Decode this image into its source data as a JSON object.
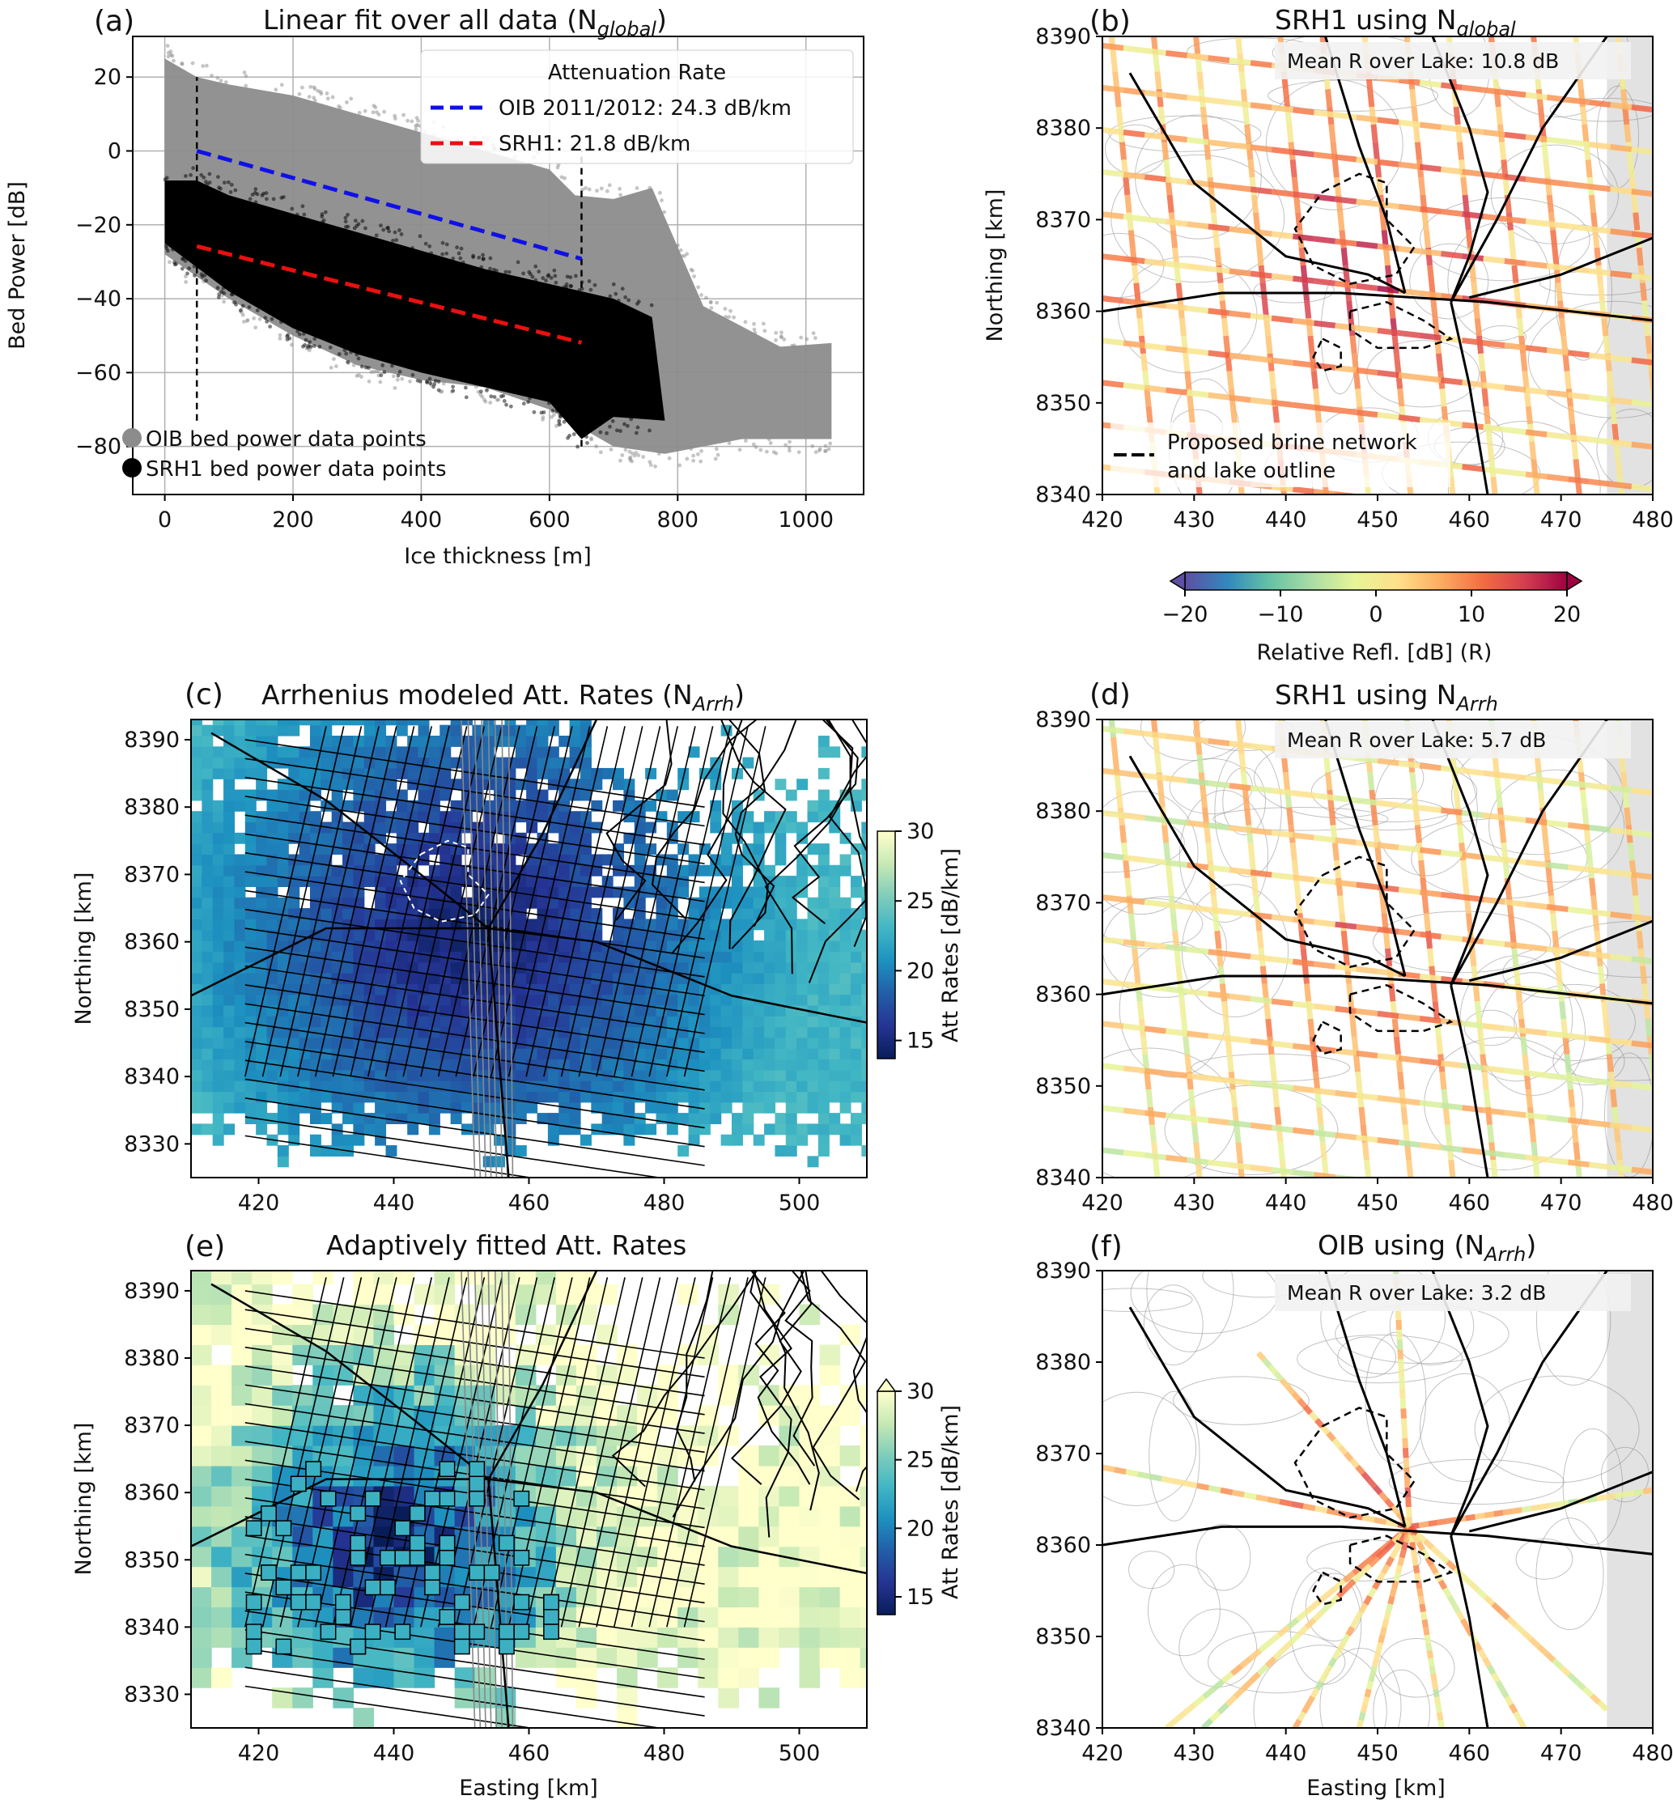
{
  "colors": {
    "oib": "#8c8c8c",
    "srh1": "#000000",
    "oib_fit": "#1010e8",
    "srh1_fit": "#e81010",
    "att_cmap": [
      "#081d58",
      "#253494",
      "#225ea8",
      "#1d91c0",
      "#41b6c4",
      "#7fcdbb",
      "#c7e9b4",
      "#ffffcc"
    ],
    "refl_cmap": [
      "#5e4fa2",
      "#3288bd",
      "#66c2a5",
      "#abdda4",
      "#e6f598",
      "#fee08b",
      "#fdae61",
      "#f46d43",
      "#d53e4f",
      "#9e0142"
    ]
  },
  "panels": {
    "a": {
      "label": "(a)",
      "title": "Linear fit over all data (N",
      "title_sub": "global",
      "title_end": ")",
      "legend_title": "Attenuation Rate",
      "legend_oib": "OIB 2011/2012: 24.3 dB/km",
      "legend_srh1": "SRH1: 21.8 dB/km",
      "marker_oib": "OIB bed power data points",
      "marker_srh1": "SRH1 bed power data points"
    },
    "b": {
      "label": "(b)",
      "title": "SRH1 using N",
      "title_sub": "global",
      "note": "Mean R over Lake: 10.8 dB",
      "legend_line1": "Proposed brine network",
      "legend_line2": "and lake outline"
    },
    "c": {
      "label": "(c)",
      "title": "Arrhenius modeled Att. Rates (N",
      "title_sub": "Arrh",
      "title_end": ")"
    },
    "d": {
      "label": "(d)",
      "title": "SRH1 using N",
      "title_sub": "Arrh",
      "note": "Mean R over Lake: 5.7 dB"
    },
    "e": {
      "label": "(e)",
      "title": "Adaptively fitted Att. Rates"
    },
    "f": {
      "label": "(f)",
      "title": "OIB using (N",
      "title_sub": "Arrh",
      "title_end": ")",
      "note": "Mean R over Lake: 3.2 dB"
    }
  },
  "colorbars": {
    "refl": {
      "label": "Relative Refl. [dB] (R)",
      "ticks": [
        "−20",
        "−10",
        "0",
        "10",
        "20"
      ]
    },
    "att": {
      "label": "Att Rates [dB/km]",
      "ticks": [
        "15",
        "20",
        "25",
        "30"
      ]
    }
  },
  "chart_data": [
    {
      "type": "scatter",
      "panel": "a",
      "xlabel": "Ice thickness [m]",
      "ylabel": "Bed Power [dB]",
      "xlim": [
        -50,
        1090
      ],
      "ylim": [
        -93,
        31
      ],
      "xticks": [
        0,
        200,
        400,
        600,
        800,
        1000
      ],
      "yticks": [
        20,
        0,
        -20,
        -40,
        -60,
        -80
      ],
      "grid": true,
      "legend_position": "top-right",
      "series": [
        {
          "name": "OIB bed power data points",
          "kind": "scatter",
          "color": "gray",
          "envelope_upper": [
            [
              0,
              25
            ],
            [
              50,
              20
            ],
            [
              100,
              18
            ],
            [
              200,
              15
            ],
            [
              300,
              10
            ],
            [
              400,
              5
            ],
            [
              500,
              0
            ],
            [
              600,
              -5
            ],
            [
              640,
              -12
            ],
            [
              700,
              -13
            ],
            [
              760,
              -10
            ],
            [
              840,
              -42
            ],
            [
              960,
              -53
            ],
            [
              1040,
              -52
            ]
          ],
          "envelope_lower": [
            [
              0,
              -28
            ],
            [
              100,
              -40
            ],
            [
              200,
              -50
            ],
            [
              300,
              -58
            ],
            [
              400,
              -62
            ],
            [
              500,
              -64
            ],
            [
              600,
              -70
            ],
            [
              700,
              -80
            ],
            [
              780,
              -82
            ],
            [
              900,
              -78
            ],
            [
              1040,
              -78
            ]
          ]
        },
        {
          "name": "SRH1 bed power data points",
          "kind": "scatter",
          "color": "black",
          "envelope_upper": [
            [
              0,
              -8
            ],
            [
              50,
              -8
            ],
            [
              100,
              -12
            ],
            [
              200,
              -17
            ],
            [
              300,
              -22
            ],
            [
              400,
              -27
            ],
            [
              500,
              -32
            ],
            [
              600,
              -36
            ],
            [
              700,
              -40
            ],
            [
              760,
              -45
            ]
          ],
          "envelope_lower": [
            [
              0,
              -25
            ],
            [
              100,
              -38
            ],
            [
              200,
              -48
            ],
            [
              300,
              -55
            ],
            [
              400,
              -60
            ],
            [
              500,
              -64
            ],
            [
              600,
              -68
            ],
            [
              650,
              -78
            ],
            [
              700,
              -72
            ],
            [
              780,
              -73
            ]
          ]
        },
        {
          "name": "OIB 2011/2012: 24.3 dB/km",
          "kind": "fit",
          "x": [
            50,
            650
          ],
          "y": [
            0,
            -29.2
          ]
        },
        {
          "name": "SRH1: 21.8 dB/km",
          "kind": "fit",
          "x": [
            50,
            650
          ],
          "y": [
            -25.8,
            -51.9
          ]
        }
      ],
      "annotations": [
        {
          "kind": "vline",
          "x": 50,
          "y": [
            -73,
            20
          ]
        },
        {
          "kind": "vline",
          "x": 650,
          "y": [
            -80,
            0
          ]
        }
      ]
    },
    {
      "type": "heatmap",
      "panel": "b",
      "xlim": [
        420,
        480
      ],
      "ylim": [
        8340,
        8390
      ],
      "xticks": [
        420,
        430,
        440,
        450,
        460,
        470,
        480
      ],
      "yticks": [
        8390,
        8380,
        8370,
        8360,
        8350,
        8340
      ],
      "ylabel": "Northing [km]",
      "colorbar": "refl"
    },
    {
      "type": "heatmap",
      "panel": "c",
      "xlim": [
        410,
        510
      ],
      "ylim": [
        8325,
        8393
      ],
      "xticks": [
        420,
        440,
        460,
        480,
        500
      ],
      "yticks": [
        8390,
        8380,
        8370,
        8360,
        8350,
        8340,
        8330
      ],
      "ylabel": "Northing [km]",
      "colorbar": "att",
      "clim": [
        13.7,
        30
      ]
    },
    {
      "type": "heatmap",
      "panel": "d",
      "xlim": [
        420,
        480
      ],
      "ylim": [
        8340,
        8390
      ],
      "xticks": [
        420,
        430,
        440,
        450,
        460,
        470,
        480
      ],
      "yticks": [
        8390,
        8380,
        8370,
        8360,
        8350,
        8340
      ],
      "colorbar": "refl"
    },
    {
      "type": "heatmap",
      "panel": "e",
      "xlim": [
        410,
        510
      ],
      "ylim": [
        8325,
        8393
      ],
      "xticks": [
        420,
        440,
        460,
        480,
        500
      ],
      "yticks": [
        8390,
        8380,
        8370,
        8360,
        8350,
        8340,
        8330
      ],
      "xlabel": "Easting [km]",
      "ylabel": "Northing [km]",
      "colorbar": "att",
      "clim": [
        13.7,
        30
      ]
    },
    {
      "type": "heatmap",
      "panel": "f",
      "xlim": [
        420,
        480
      ],
      "ylim": [
        8340,
        8390
      ],
      "xticks": [
        420,
        430,
        440,
        450,
        460,
        470,
        480
      ],
      "yticks": [
        8390,
        8380,
        8370,
        8360,
        8350,
        8340
      ],
      "xlabel": "Easting [km]",
      "colorbar": "refl"
    }
  ]
}
